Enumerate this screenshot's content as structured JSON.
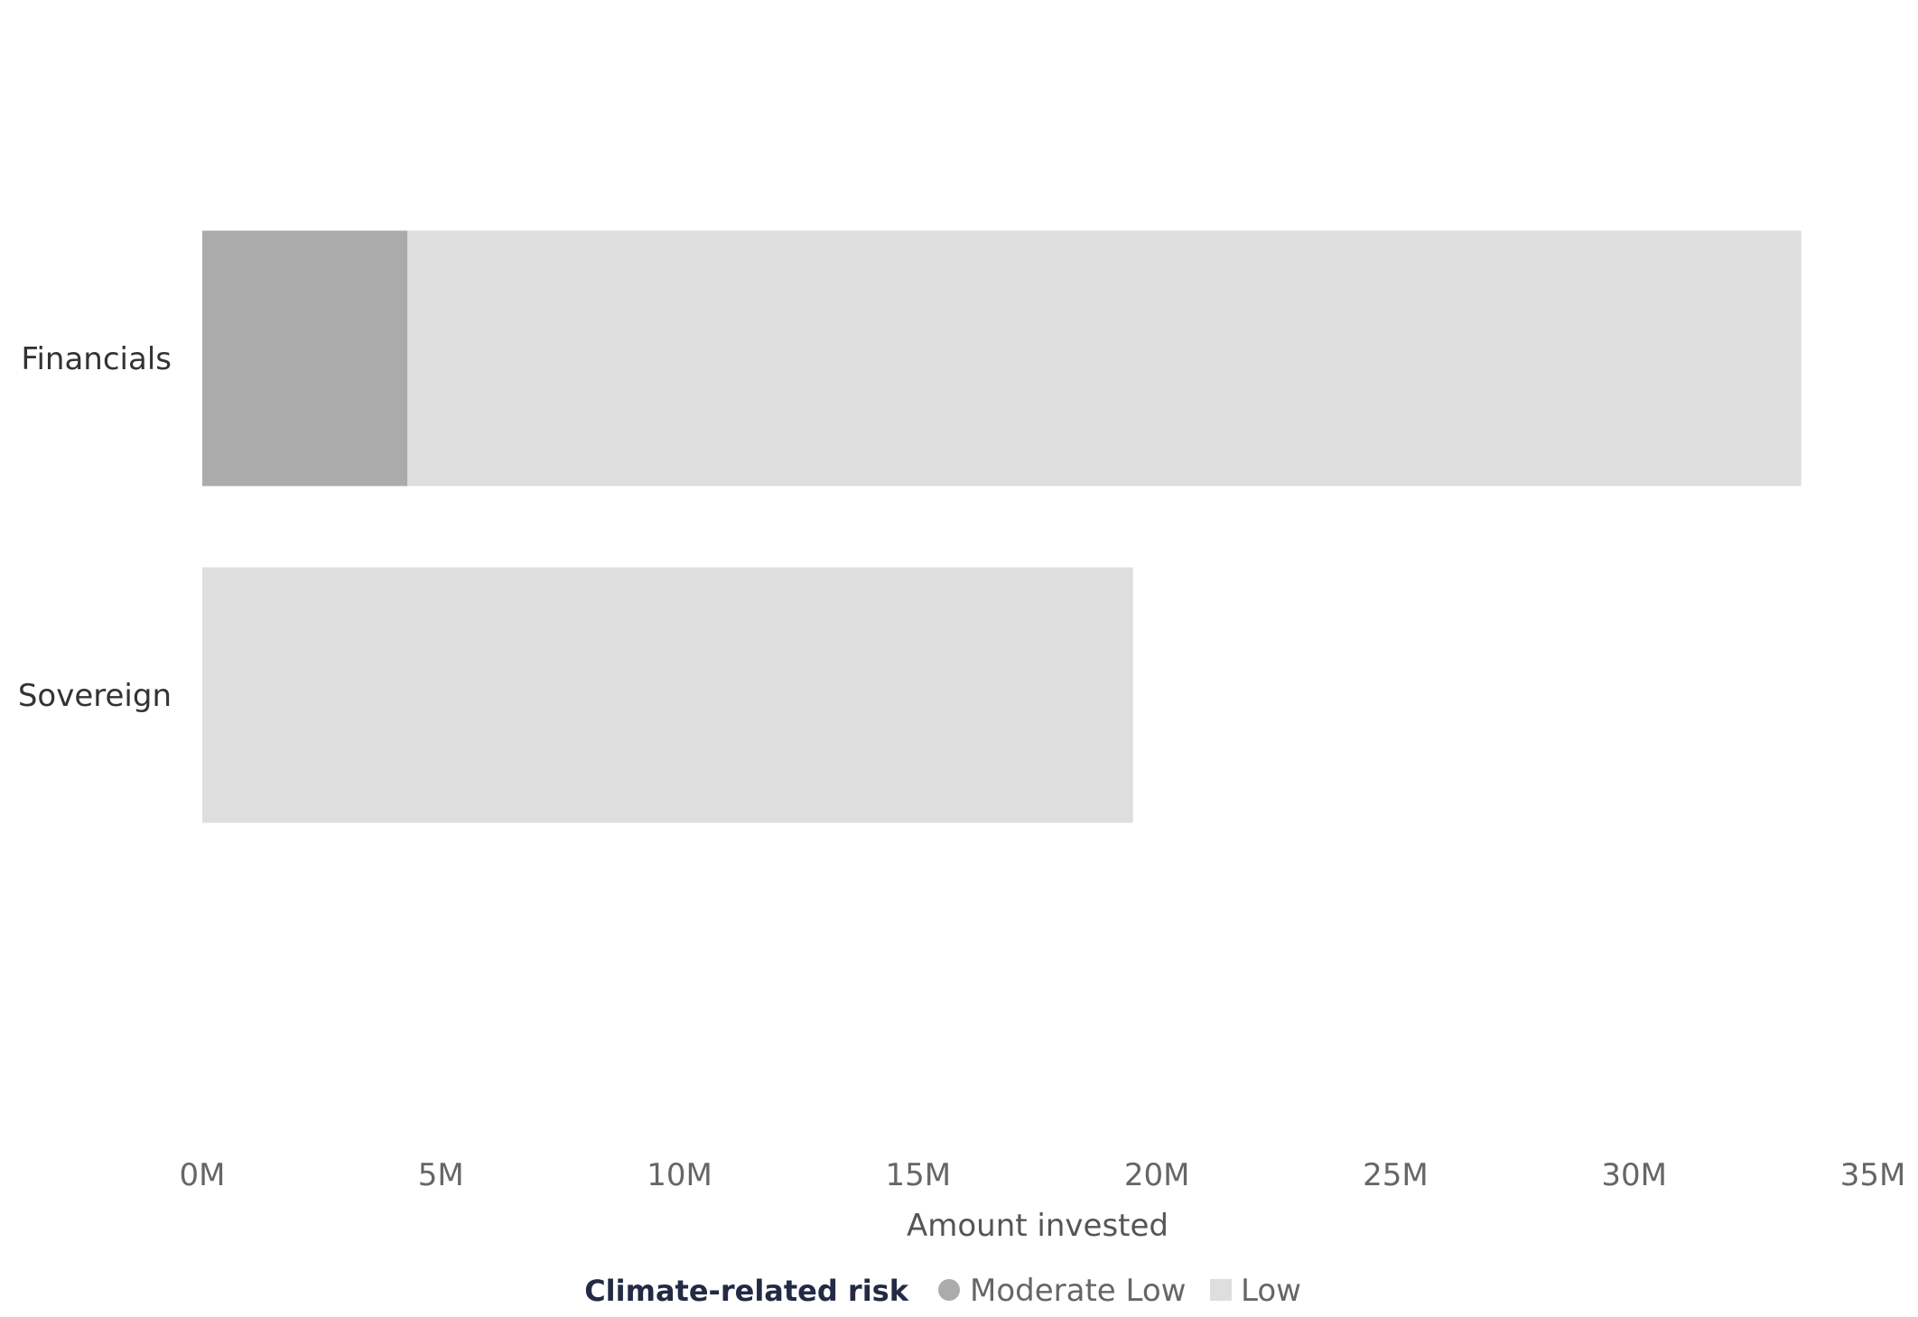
{
  "chart_data": {
    "type": "bar",
    "orientation": "horizontal",
    "stacked": true,
    "categories": [
      "Financials",
      "Sovereign"
    ],
    "series": [
      {
        "name": "Moderate Low",
        "values": [
          4.3,
          0
        ],
        "color": "#ababab"
      },
      {
        "name": "Low",
        "values": [
          29.2,
          19.5
        ],
        "color": "#dedede"
      }
    ],
    "xlabel": "Amount invested",
    "ylabel": "",
    "xlim": [
      0,
      35
    ],
    "xticks": [
      0,
      5,
      10,
      15,
      20,
      25,
      30,
      35
    ],
    "tick_labels": [
      "0M",
      "5M",
      "10M",
      "15M",
      "20M",
      "25M",
      "30M",
      "35M"
    ],
    "legend": {
      "title": "Climate-related risk",
      "position": "bottom-center"
    },
    "grid": false
  }
}
